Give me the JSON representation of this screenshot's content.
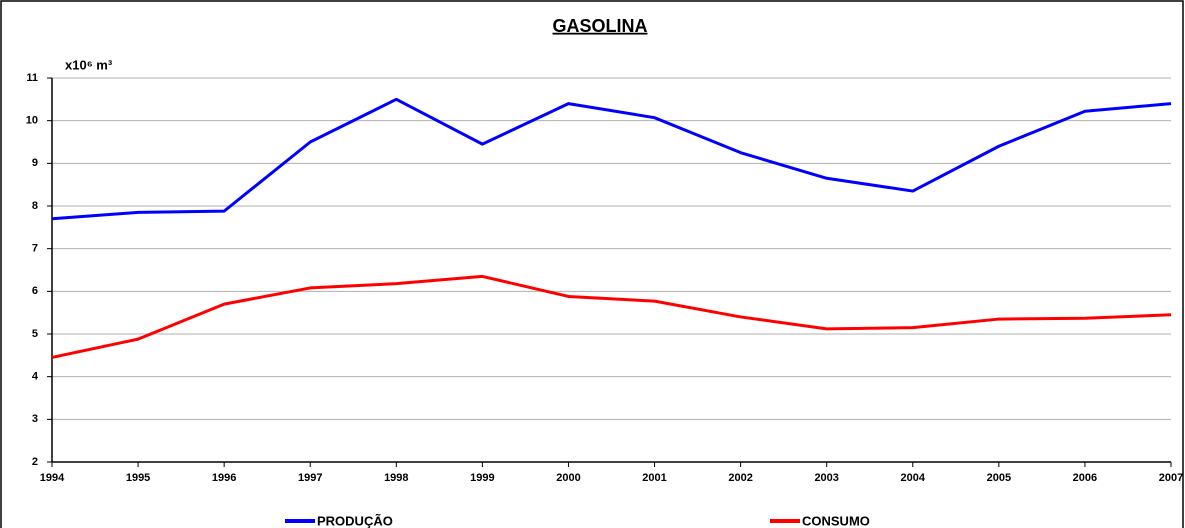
{
  "chart_data": {
    "type": "line",
    "title": "GASOLINA",
    "y_label": "x10⁶ m³",
    "x": [
      1994,
      1995,
      1996,
      1997,
      1998,
      1999,
      2000,
      2001,
      2002,
      2003,
      2004,
      2005,
      2006,
      2007
    ],
    "xlim": [
      1994,
      2007
    ],
    "xticks": [
      1994,
      1995,
      1996,
      1997,
      1998,
      1999,
      2000,
      2001,
      2002,
      2003,
      2004,
      2005,
      2006,
      2007
    ],
    "ylim": [
      2,
      11
    ],
    "yticks": [
      2,
      3,
      4,
      5,
      6,
      7,
      8,
      9,
      10,
      11
    ],
    "grid": true,
    "legend": "bottom",
    "series": [
      {
        "name": "PRODUÇÃO",
        "color": "#0000ff",
        "values": [
          7.7,
          7.85,
          7.88,
          9.5,
          10.5,
          9.45,
          10.4,
          10.07,
          9.25,
          8.65,
          8.35,
          9.4,
          10.22,
          10.4
        ]
      },
      {
        "name": "CONSUMO",
        "color": "#ff0000",
        "values": [
          4.45,
          4.88,
          5.7,
          6.08,
          6.18,
          6.35,
          5.88,
          5.77,
          5.4,
          5.12,
          5.15,
          5.35,
          5.37,
          5.45
        ]
      }
    ]
  }
}
